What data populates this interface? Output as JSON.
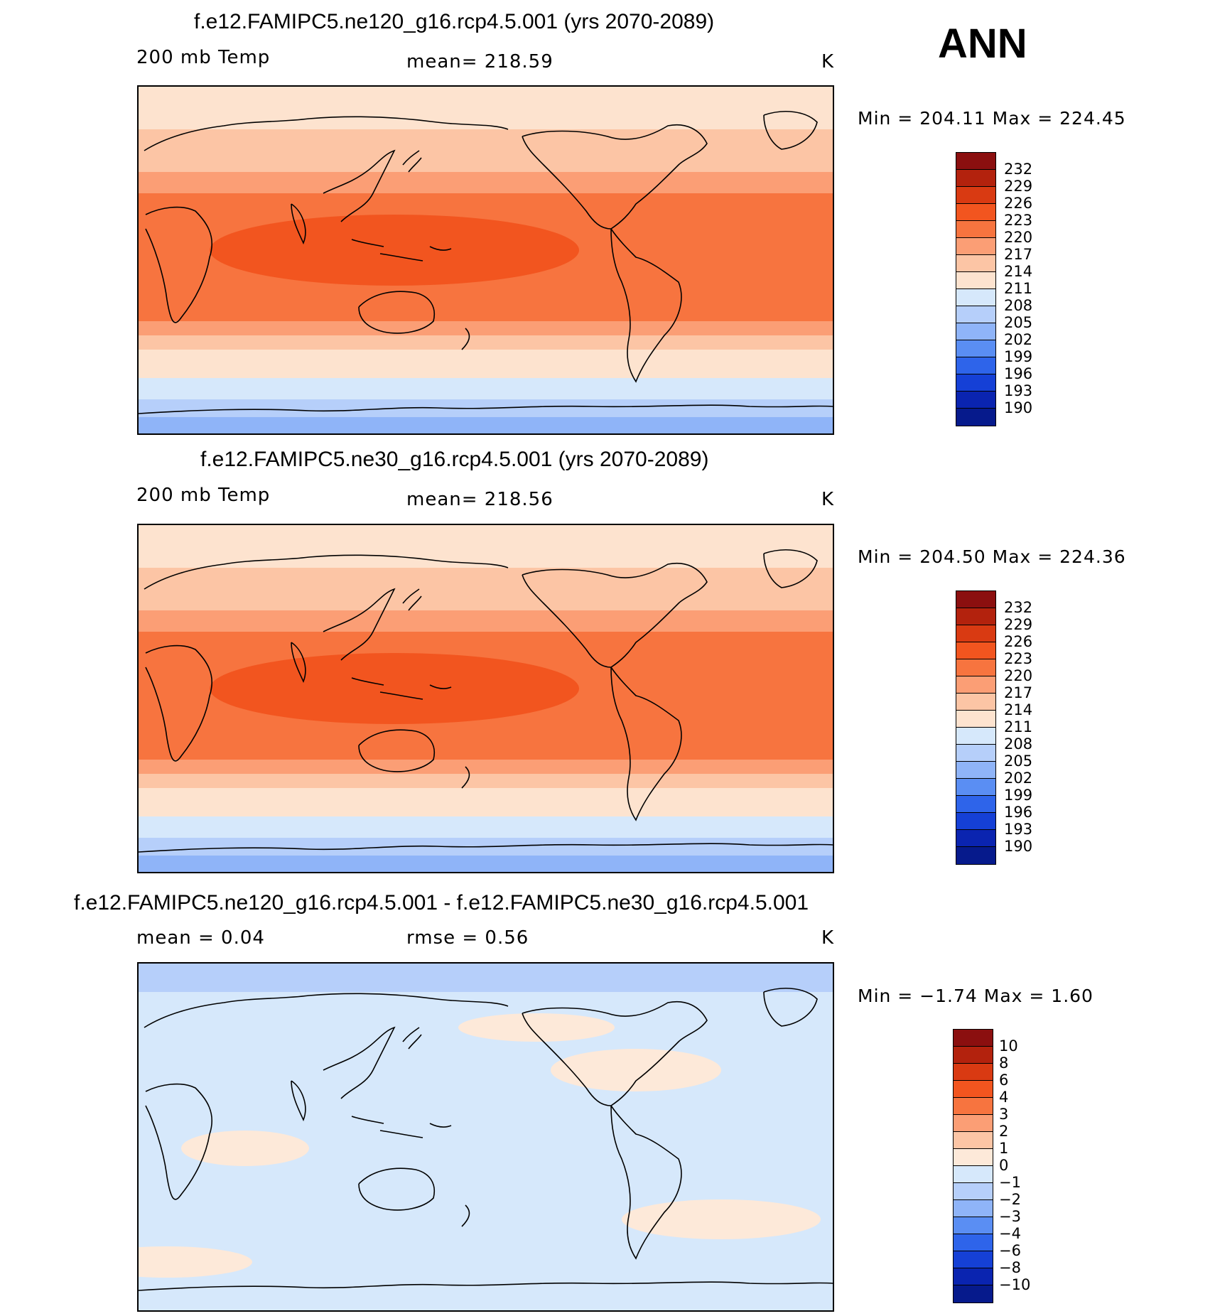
{
  "season": "ANN",
  "panels": [
    {
      "title": "f.e12.FAMIPC5.ne120_g16.rcp4.5.001 (yrs 2070-2089)",
      "left_label": "200 mb Temp",
      "center_label": "mean=  218.59",
      "units": "K",
      "minmax": "Min  =  204.11  Max  =  224.45",
      "map_kind": "absolute",
      "colorbar": {
        "labels": [
          "232",
          "229",
          "226",
          "223",
          "220",
          "217",
          "214",
          "211",
          "208",
          "205",
          "202",
          "199",
          "196",
          "193",
          "190"
        ],
        "colors": [
          "#8b0f0f",
          "#b3220d",
          "#d93a12",
          "#f2551f",
          "#f7743f",
          "#fb9e75",
          "#fcc5a5",
          "#fde3cf",
          "#d6e8fb",
          "#b6cffa",
          "#8fb4f8",
          "#5a8ef3",
          "#2e64ea",
          "#1540d6",
          "#0a24b0",
          "#061a8c"
        ]
      }
    },
    {
      "title": "f.e12.FAMIPC5.ne30_g16.rcp4.5.001 (yrs 2070-2089)",
      "left_label": "200 mb Temp",
      "center_label": "mean=  218.56",
      "units": "K",
      "minmax": "Min  =  204.50  Max  =  224.36",
      "map_kind": "absolute",
      "colorbar": {
        "labels": [
          "232",
          "229",
          "226",
          "223",
          "220",
          "217",
          "214",
          "211",
          "208",
          "205",
          "202",
          "199",
          "196",
          "193",
          "190"
        ],
        "colors": [
          "#8b0f0f",
          "#b3220d",
          "#d93a12",
          "#f2551f",
          "#f7743f",
          "#fb9e75",
          "#fcc5a5",
          "#fde3cf",
          "#d6e8fb",
          "#b6cffa",
          "#8fb4f8",
          "#5a8ef3",
          "#2e64ea",
          "#1540d6",
          "#0a24b0",
          "#061a8c"
        ]
      }
    },
    {
      "title": "f.e12.FAMIPC5.ne120_g16.rcp4.5.001 - f.e12.FAMIPC5.ne30_g16.rcp4.5.001",
      "left_label": "mean  =      0.04",
      "center_label": "rmse  =     0.56",
      "units": "K",
      "minmax": "Min  =    −1.74  Max  =     1.60",
      "map_kind": "difference",
      "colorbar": {
        "labels": [
          "10",
          "8",
          "6",
          "4",
          "3",
          "2",
          "1",
          "0",
          "−1",
          "−2",
          "−3",
          "−4",
          "−6",
          "−8",
          "−10"
        ],
        "colors": [
          "#8b0f0f",
          "#b3220d",
          "#d93a12",
          "#f2551f",
          "#f7743f",
          "#fb9e75",
          "#fcc5a5",
          "#fde9d9",
          "#d6e8fb",
          "#b6cffa",
          "#8fb4f8",
          "#5a8ef3",
          "#2e64ea",
          "#1540d6",
          "#0a24b0",
          "#061a8c"
        ]
      }
    }
  ]
}
